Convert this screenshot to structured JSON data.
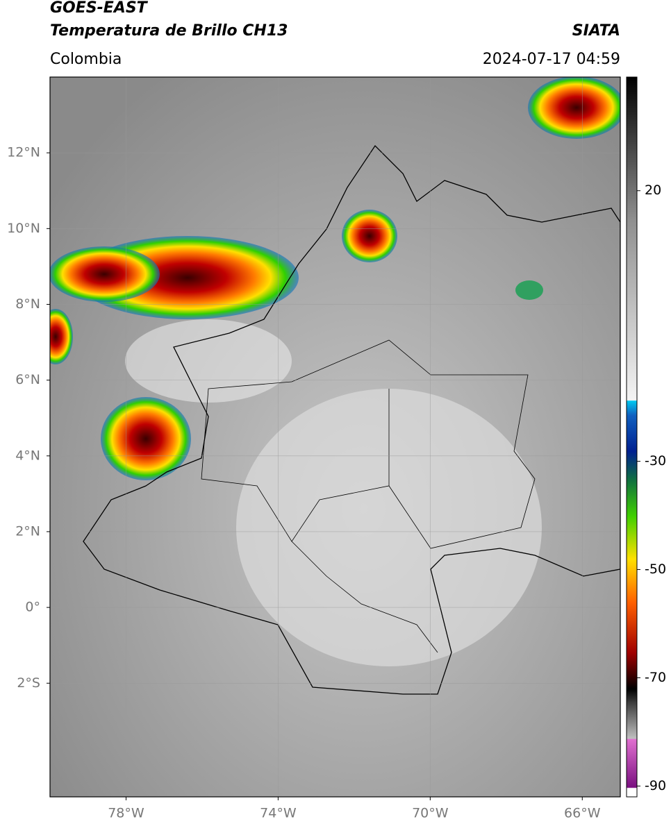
{
  "header": {
    "title": "GOES-EAST",
    "subtitle": "Temperatura de Brillo CH13",
    "source": "SIATA",
    "region": "Colombia",
    "datetime": "2024-07-17 04:59"
  },
  "map": {
    "xlim": [
      -80,
      -65
    ],
    "ylim": [
      -5,
      14
    ],
    "grid": true,
    "xticks": [
      {
        "value": -78,
        "label": "78°W"
      },
      {
        "value": -74,
        "label": "74°W"
      },
      {
        "value": -70,
        "label": "70°W"
      },
      {
        "value": -66,
        "label": "66°W"
      }
    ],
    "yticks": [
      {
        "value": 12,
        "label": "12°N"
      },
      {
        "value": 10,
        "label": "10°N"
      },
      {
        "value": 8,
        "label": "8°N"
      },
      {
        "value": 6,
        "label": "6°N"
      },
      {
        "value": 4,
        "label": "4°N"
      },
      {
        "value": 2,
        "label": "2°N"
      },
      {
        "value": 0,
        "label": "0°"
      },
      {
        "value": -2,
        "label": "2°S"
      }
    ]
  },
  "colorbar": {
    "clim": [
      -92,
      41
    ],
    "ticks": [
      20,
      -30,
      -50,
      -70,
      -90
    ]
  }
}
